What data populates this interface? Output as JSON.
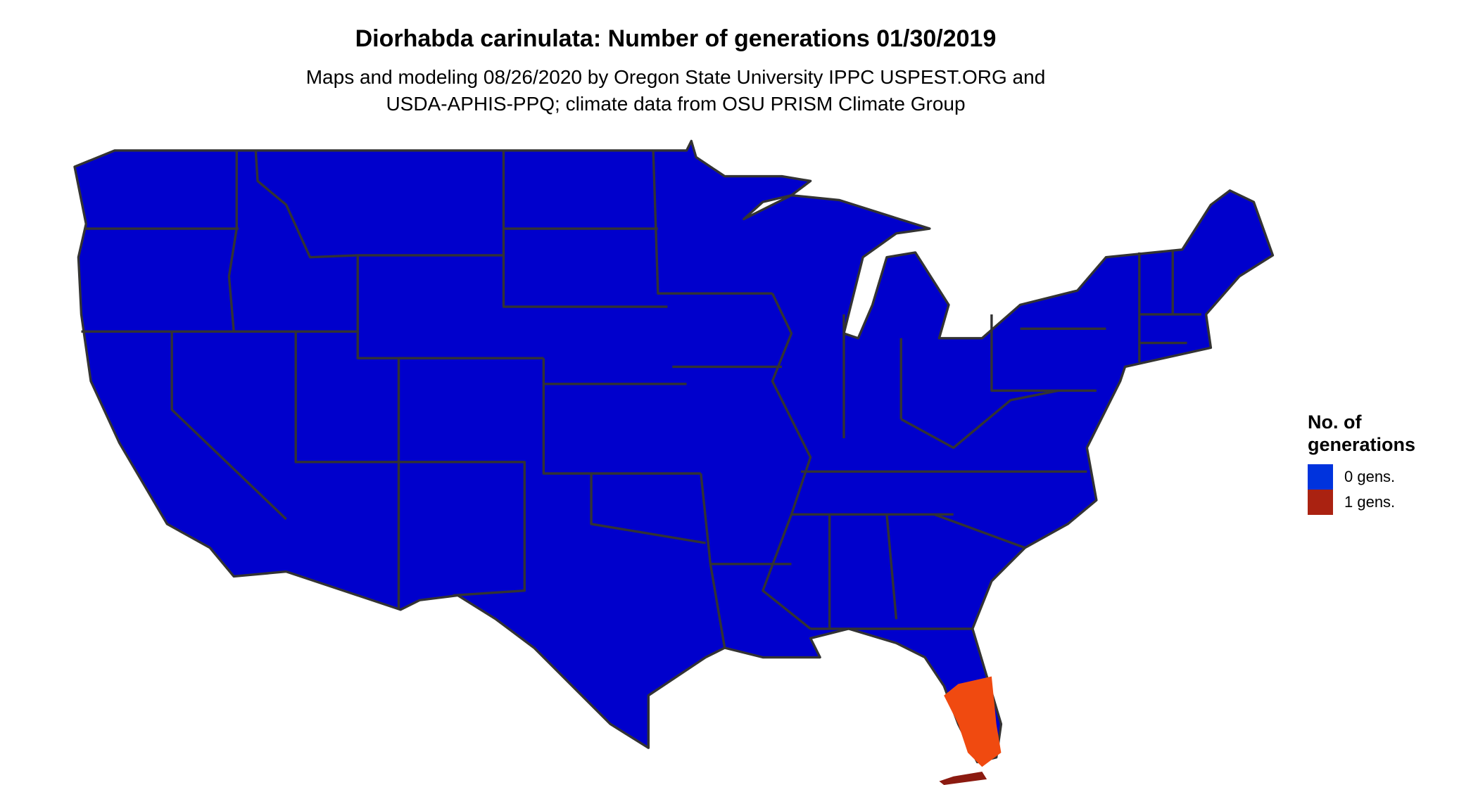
{
  "title": "Diorhabda carinulata: Number of generations 01/30/2019",
  "subtitle_lines": [
    "Maps and modeling 08/26/2020 by Oregon State University IPPC USPEST.ORG and",
    "USDA-APHIS-PPQ; climate data from OSU PRISM Climate Group"
  ],
  "map": {
    "region": "Contiguous United States",
    "base_color": "#0000cc",
    "border_color": "#333333",
    "highlight_region": "South Florida",
    "highlight_color": "#f04a10"
  },
  "legend": {
    "title_lines": [
      "No. of",
      "generations"
    ],
    "items": [
      {
        "label": "0 gens.",
        "color": "#0033dd"
      },
      {
        "label": "1 gens.",
        "color": "#aa2211"
      }
    ]
  }
}
